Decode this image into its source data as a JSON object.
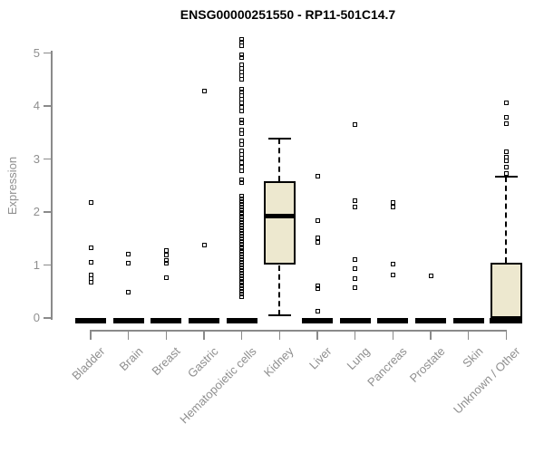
{
  "chart_data": {
    "type": "boxplot",
    "title": "ENSG00000251550 - RP11-501C14.7",
    "ylabel": "Expression",
    "xlabel": "",
    "ylim": [
      0,
      5.3
    ],
    "yticks": [
      0,
      1,
      2,
      3,
      4,
      5
    ],
    "grid": false,
    "legend": "none",
    "categories": [
      "Bladder",
      "Brain",
      "Breast",
      "Gastric",
      "Hematopoietic cells",
      "Kidney",
      "Liver",
      "Lung",
      "Pancreas",
      "Prostate",
      "Skin",
      "Unknown / Other"
    ],
    "boxes": [
      {
        "category": "Bladder",
        "q1": 0,
        "median": 0,
        "q3": 0,
        "whisker_low": 0,
        "whisker_high": 0,
        "outliers": [
          2.18,
          1.32,
          1.05,
          0.82,
          0.74,
          0.67
        ]
      },
      {
        "category": "Brain",
        "q1": 0,
        "median": 0,
        "q3": 0,
        "whisker_low": 0,
        "whisker_high": 0,
        "outliers": [
          1.2,
          1.04,
          0.49
        ]
      },
      {
        "category": "Breast",
        "q1": 0,
        "median": 0,
        "q3": 0,
        "whisker_low": 0,
        "whisker_high": 0,
        "outliers": [
          1.28,
          1.18,
          1.08,
          1.03,
          0.76
        ]
      },
      {
        "category": "Gastric",
        "q1": 0,
        "median": 0,
        "q3": 0,
        "whisker_low": 0,
        "whisker_high": 0,
        "outliers": [
          4.28,
          1.37
        ]
      },
      {
        "category": "Hematopoietic cells",
        "q1": 0,
        "median": 0,
        "q3": 0,
        "whisker_low": 0,
        "whisker_high": 0,
        "outliers": [
          5.25,
          5.2,
          5.14,
          4.97,
          4.91,
          4.78,
          4.71,
          4.64,
          4.57,
          4.51,
          4.32,
          4.26,
          4.19,
          4.12,
          4.06,
          3.97,
          3.9,
          3.74,
          3.69,
          3.54,
          3.48,
          3.34,
          3.27,
          3.15,
          3.08,
          3.01,
          2.94,
          2.84,
          2.77,
          2.61,
          2.55,
          2.3,
          2.25,
          2.2,
          2.15,
          2.1,
          2.05,
          2.0,
          1.95,
          1.9,
          1.85,
          1.8,
          1.75,
          1.7,
          1.65,
          1.6,
          1.55,
          1.5,
          1.45,
          1.4,
          1.35,
          1.3,
          1.25,
          1.2,
          1.15,
          1.1,
          1.05,
          1.0,
          0.95,
          0.9,
          0.85,
          0.8,
          0.75,
          0.7,
          0.65,
          0.6,
          0.55,
          0.5,
          0.45,
          0.4
        ]
      },
      {
        "category": "Kidney",
        "q1": 1.0,
        "median": 1.93,
        "q3": 2.58,
        "whisker_low": 0.05,
        "whisker_high": 3.38,
        "outliers": []
      },
      {
        "category": "Liver",
        "q1": 0,
        "median": 0,
        "q3": 0,
        "whisker_low": 0,
        "whisker_high": 0,
        "outliers": [
          2.67,
          1.84,
          1.51,
          1.42,
          0.6,
          0.55,
          0.13
        ]
      },
      {
        "category": "Lung",
        "q1": 0,
        "median": 0,
        "q3": 0,
        "whisker_low": 0,
        "whisker_high": 0,
        "outliers": [
          3.65,
          2.22,
          2.1,
          1.11,
          0.94,
          0.74,
          0.58
        ]
      },
      {
        "category": "Pancreas",
        "q1": 0,
        "median": 0,
        "q3": 0,
        "whisker_low": 0,
        "whisker_high": 0,
        "outliers": [
          2.18,
          2.1,
          1.01,
          0.82
        ]
      },
      {
        "category": "Prostate",
        "q1": 0,
        "median": 0,
        "q3": 0,
        "whisker_low": 0,
        "whisker_high": 0,
        "outliers": [
          0.8
        ]
      },
      {
        "category": "Skin",
        "q1": 0,
        "median": 0,
        "q3": 0,
        "whisker_low": 0,
        "whisker_high": 0,
        "outliers": []
      },
      {
        "category": "Unknown / Other",
        "q1": 0,
        "median": 0,
        "q3": 1.04,
        "whisker_low": 0,
        "whisker_high": 2.67,
        "outliers": [
          4.06,
          3.79,
          3.66,
          3.13,
          3.04,
          2.96,
          2.85,
          2.73
        ]
      }
    ],
    "colors": {
      "box_fill": "#EDE8CF",
      "box_border": "#000000",
      "axis": "#8a8a8a",
      "tick_text": "#8f8f8f",
      "title_text": "#000000"
    }
  }
}
